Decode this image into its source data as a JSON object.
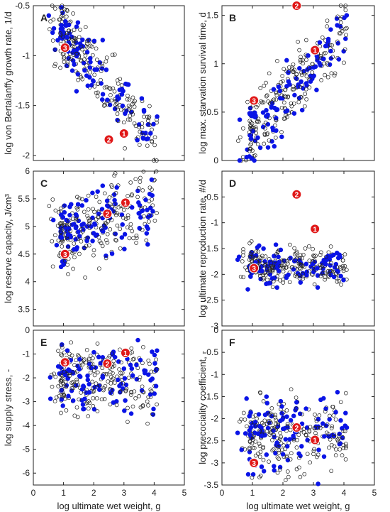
{
  "colors": {
    "filled": "#0a14e6",
    "open_stroke": "#222222",
    "highlight": "#e01818",
    "highlight_text": "#ffffff"
  },
  "chart_data": [
    {
      "panel": "A",
      "type": "scatter",
      "ylabel": "log von Bertalanffy growth rate, 1/d",
      "xlim": [
        0,
        5
      ],
      "ylim": [
        -2.05,
        -0.5
      ],
      "yticks": [
        "-0.5",
        "-1",
        "-1.5",
        "-2"
      ],
      "ytick_values": [
        -0.5,
        -1,
        -1.5,
        -2
      ],
      "xticks": [],
      "trend": {
        "x0": 1.1,
        "y0": -0.82,
        "slope": -0.35,
        "spread": 0.16
      },
      "highlighted": [
        {
          "label": "1",
          "x": 3.0,
          "y": -1.78
        },
        {
          "label": "2",
          "x": 2.5,
          "y": -1.84
        },
        {
          "label": "3",
          "x": 1.05,
          "y": -0.92
        }
      ]
    },
    {
      "panel": "B",
      "type": "scatter",
      "ylabel": "log max. starvation survival time, d",
      "xlim": [
        0,
        5
      ],
      "ylim": [
        0,
        1.6
      ],
      "yticks": [
        "0",
        "0.5",
        "1",
        "1.5"
      ],
      "ytick_values": [
        0,
        0.5,
        1,
        1.5
      ],
      "xticks": [],
      "trend": {
        "x0": 1.1,
        "y0": 0.35,
        "slope": 0.33,
        "spread": 0.17
      },
      "highlighted": [
        {
          "label": "1",
          "x": 3.05,
          "y": 1.14
        },
        {
          "label": "2",
          "x": 2.45,
          "y": 1.6
        },
        {
          "label": "3",
          "x": 1.05,
          "y": 0.62
        }
      ]
    },
    {
      "panel": "C",
      "type": "scatter",
      "ylabel": "log reserve capacity, J/cm³",
      "xlim": [
        0,
        5
      ],
      "ylim": [
        3.2,
        6.0
      ],
      "yticks": [
        "3.5",
        "4",
        "4.5",
        "5",
        "5.5",
        "6"
      ],
      "ytick_values": [
        3.5,
        4,
        4.5,
        5,
        5.5,
        6
      ],
      "xticks": [],
      "trend": {
        "x0": 1.1,
        "y0": 4.85,
        "slope": 0.18,
        "spread": 0.33
      },
      "highlighted": [
        {
          "label": "1",
          "x": 3.05,
          "y": 5.43
        },
        {
          "label": "2",
          "x": 2.45,
          "y": 5.23
        },
        {
          "label": "3",
          "x": 1.05,
          "y": 4.5
        }
      ]
    },
    {
      "panel": "D",
      "type": "scatter",
      "ylabel": "log ultimate reproduction rate, #/d",
      "xlim": [
        0,
        5
      ],
      "ylim": [
        -3.0,
        0
      ],
      "yticks": [
        "-0.5",
        "-1",
        "-1.5",
        "-2",
        "-2.5",
        "-3"
      ],
      "ytick_values": [
        -0.5,
        -1,
        -1.5,
        -2,
        -2.5,
        -3
      ],
      "xticks": [],
      "trend": {
        "x0": 1.1,
        "y0": -1.85,
        "slope": 0.0,
        "spread": 0.18
      },
      "highlighted": [
        {
          "label": "1",
          "x": 3.05,
          "y": -1.12
        },
        {
          "label": "2",
          "x": 2.45,
          "y": -0.45
        },
        {
          "label": "3",
          "x": 1.05,
          "y": -1.88
        }
      ]
    },
    {
      "panel": "E",
      "type": "scatter",
      "ylabel": "log supply stress, -",
      "xlabel": "log ultimate wet weight, g",
      "xlim": [
        0,
        5
      ],
      "ylim": [
        -6.5,
        0
      ],
      "yticks": [
        "0",
        "-1",
        "-2",
        "-3",
        "-4",
        "-5",
        "-6"
      ],
      "ytick_values": [
        0,
        -1,
        -2,
        -3,
        -4,
        -5,
        -6
      ],
      "xticks": [
        "0",
        "1",
        "2",
        "3",
        "4",
        "5"
      ],
      "xtick_values": [
        0,
        1,
        2,
        3,
        4,
        5
      ],
      "trend": {
        "x0": 1.1,
        "y0": -2.0,
        "slope": 0.0,
        "spread": 0.75
      },
      "highlighted": [
        {
          "label": "1",
          "x": 3.05,
          "y": -0.95
        },
        {
          "label": "2",
          "x": 2.45,
          "y": -1.4
        },
        {
          "label": "3",
          "x": 1.05,
          "y": -1.35
        }
      ]
    },
    {
      "panel": "F",
      "type": "scatter",
      "ylabel": "log precociality coefficient, -",
      "xlabel": "log ultimate wet weight, g",
      "xlim": [
        0,
        5
      ],
      "ylim": [
        -3.5,
        0
      ],
      "yticks": [
        "0",
        "-0.5",
        "-1",
        "-1.5",
        "-2",
        "-2.5",
        "-3",
        "-3.5"
      ],
      "ytick_values": [
        0,
        -0.5,
        -1,
        -1.5,
        -2,
        -2.5,
        -3,
        -3.5
      ],
      "xticks": [
        "0",
        "1",
        "2",
        "3",
        "4",
        "5"
      ],
      "xtick_values": [
        0,
        1,
        2,
        3,
        4,
        5
      ],
      "trend": {
        "x0": 1.1,
        "y0": -2.35,
        "slope": 0.0,
        "spread": 0.42
      },
      "highlighted": [
        {
          "label": "1",
          "x": 3.05,
          "y": -2.48
        },
        {
          "label": "2",
          "x": 2.45,
          "y": -2.2
        },
        {
          "label": "3",
          "x": 1.05,
          "y": -3.0
        }
      ]
    }
  ]
}
